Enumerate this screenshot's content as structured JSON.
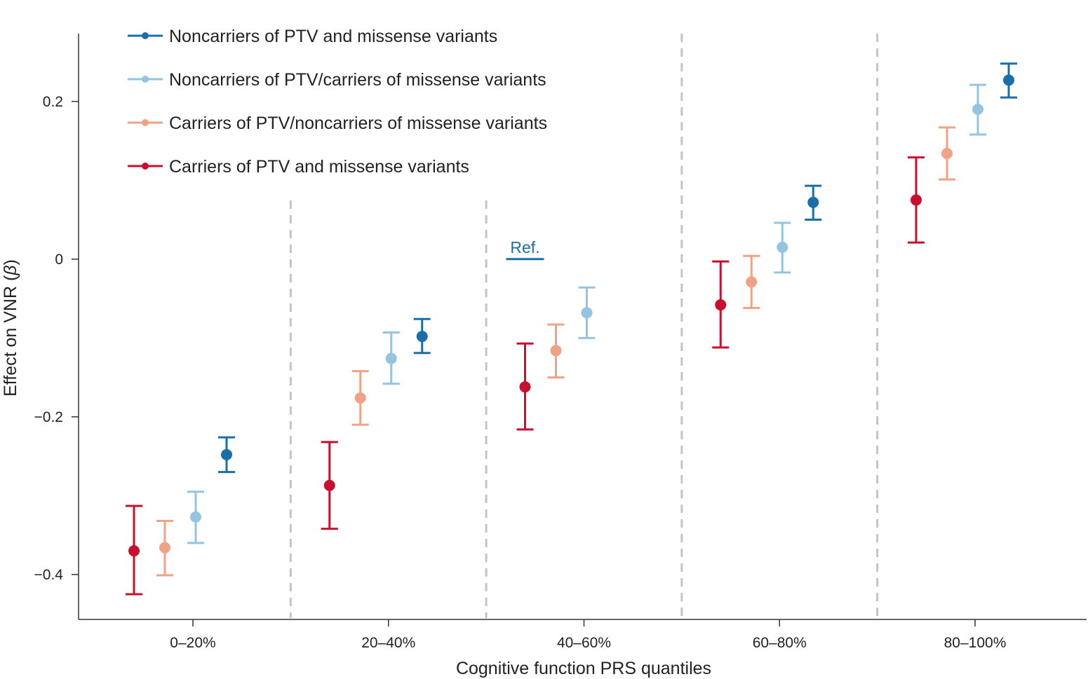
{
  "chart_data": {
    "type": "scatter",
    "subtype": "point-with-error-bars",
    "title": "",
    "xlabel": "Cognitive function PRS quantiles",
    "ylabel": "Effect on VNR (β)",
    "ylabel_parts": {
      "prefix": "Effect on VNR (",
      "symbol": "β",
      "suffix": ")"
    },
    "ylim": [
      -0.457,
      0.286
    ],
    "yticks": [
      {
        "value": 0.2,
        "label": "0.2"
      },
      {
        "value": 0,
        "label": "0"
      },
      {
        "value": -0.2,
        "label": "−0.2"
      },
      {
        "value": -0.4,
        "label": "−0.4"
      }
    ],
    "categories": [
      "0–20%",
      "20–40%",
      "40–60%",
      "60–80%",
      "80–100%"
    ],
    "dividers_between_categories": true,
    "legend_position": "top-left",
    "reference": {
      "label": "Ref.",
      "category_index": 2,
      "series_index": 0,
      "value": 0,
      "color": "#1a6fa8"
    },
    "series": [
      {
        "name": "Carriers of PTV and missense variants",
        "color": "#c8102e",
        "points": [
          {
            "category": "0–20%",
            "estimate": -0.37,
            "lower": -0.425,
            "upper": -0.313
          },
          {
            "category": "20–40%",
            "estimate": -0.287,
            "lower": -0.342,
            "upper": -0.232
          },
          {
            "category": "40–60%",
            "estimate": -0.162,
            "lower": -0.216,
            "upper": -0.107
          },
          {
            "category": "60–80%",
            "estimate": -0.058,
            "lower": -0.112,
            "upper": -0.003
          },
          {
            "category": "80–100%",
            "estimate": 0.075,
            "lower": 0.021,
            "upper": 0.129
          }
        ]
      },
      {
        "name": "Carriers of PTV/noncarriers of missense variants",
        "color": "#f0a384",
        "points": [
          {
            "category": "0–20%",
            "estimate": -0.366,
            "lower": -0.401,
            "upper": -0.332
          },
          {
            "category": "20–40%",
            "estimate": -0.176,
            "lower": -0.21,
            "upper": -0.142
          },
          {
            "category": "40–60%",
            "estimate": -0.116,
            "lower": -0.15,
            "upper": -0.083
          },
          {
            "category": "60–80%",
            "estimate": -0.029,
            "lower": -0.062,
            "upper": 0.004
          },
          {
            "category": "80–100%",
            "estimate": 0.134,
            "lower": 0.101,
            "upper": 0.167
          }
        ]
      },
      {
        "name": "Noncarriers of PTV/carriers of missense variants",
        "color": "#93c5e0",
        "points": [
          {
            "category": "0–20%",
            "estimate": -0.327,
            "lower": -0.36,
            "upper": -0.295
          },
          {
            "category": "20–40%",
            "estimate": -0.126,
            "lower": -0.158,
            "upper": -0.093
          },
          {
            "category": "40–60%",
            "estimate": -0.068,
            "lower": -0.1,
            "upper": -0.036
          },
          {
            "category": "60–80%",
            "estimate": 0.015,
            "lower": -0.017,
            "upper": 0.046
          },
          {
            "category": "80–100%",
            "estimate": 0.19,
            "lower": 0.158,
            "upper": 0.221
          }
        ]
      },
      {
        "name": "Noncarriers of PTV and missense variants",
        "color": "#1a6fa8",
        "points": [
          {
            "category": "0–20%",
            "estimate": -0.248,
            "lower": -0.27,
            "upper": -0.226
          },
          {
            "category": "20–40%",
            "estimate": -0.098,
            "lower": -0.119,
            "upper": -0.076
          },
          {
            "category": "40–60%",
            "estimate": 0,
            "lower": 0,
            "upper": 0,
            "is_reference": true
          },
          {
            "category": "60–80%",
            "estimate": 0.072,
            "lower": 0.05,
            "upper": 0.093
          },
          {
            "category": "80–100%",
            "estimate": 0.227,
            "lower": 0.205,
            "upper": 0.248
          }
        ]
      }
    ],
    "legend": [
      {
        "label": "Noncarriers of PTV and missense variants",
        "color": "#1a6fa8"
      },
      {
        "label": "Noncarriers of PTV/carriers of missense variants",
        "color": "#93c5e0"
      },
      {
        "label": "Carriers of PTV/noncarriers of missense variants",
        "color": "#f0a384"
      },
      {
        "label": "Carriers of PTV and missense variants",
        "color": "#c8102e"
      }
    ]
  }
}
